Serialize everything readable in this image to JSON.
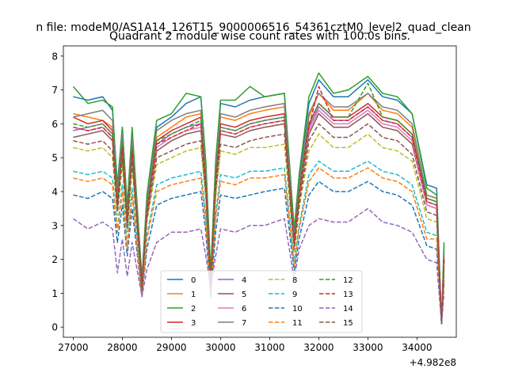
{
  "figure": {
    "suptitle": "n file: modeM0/AS1A14_126T15_9000006516_54361cztM0_level2_quad_clean",
    "offset_label": "+4.982e8"
  },
  "chart_data": {
    "type": "line",
    "title": "Quadrant 2 module wise count rates with 100.0s bins.",
    "xlabel": "",
    "ylabel": "",
    "xlim": [
      26800,
      34800
    ],
    "ylim": [
      -0.3,
      8.3
    ],
    "grid": false,
    "legend_position": "lower-center",
    "legend_columns": 4,
    "x_ticks": [
      27000,
      28000,
      29000,
      30000,
      31000,
      32000,
      33000,
      34000
    ],
    "x_tick_labels": [
      "27000",
      "28000",
      "29000",
      "30000",
      "31000",
      "32000",
      "33000",
      "34000"
    ],
    "y_ticks": [
      0,
      1,
      2,
      3,
      4,
      5,
      6,
      7,
      8
    ],
    "y_tick_labels": [
      "0",
      "1",
      "2",
      "3",
      "4",
      "5",
      "6",
      "7",
      "8"
    ],
    "x_offset": "+4.982e8",
    "x": [
      27000,
      27300,
      27600,
      27800,
      27900,
      28000,
      28100,
      28200,
      28400,
      28500,
      28700,
      29000,
      29300,
      29600,
      29700,
      29800,
      29900,
      30000,
      30300,
      30600,
      30900,
      31300,
      31500,
      31600,
      31800,
      32000,
      32300,
      32600,
      33000,
      33300,
      33600,
      33900,
      34200,
      34400,
      34500,
      34550
    ],
    "series": [
      {
        "name": "0",
        "color": "#1f77b4",
        "dash": "solid",
        "values": [
          6.8,
          6.7,
          6.8,
          6.4,
          4.2,
          5.9,
          3.5,
          5.8,
          1.4,
          3.8,
          5.9,
          6.2,
          6.6,
          6.8,
          4.8,
          1.5,
          4.8,
          6.6,
          6.5,
          6.7,
          6.8,
          6.9,
          2.8,
          4.4,
          6.6,
          7.3,
          6.8,
          6.8,
          7.3,
          6.8,
          6.7,
          6.3,
          4.2,
          4.1,
          0.1,
          2.3
        ]
      },
      {
        "name": "1",
        "color": "#ff7f0e",
        "dash": "solid",
        "values": [
          6.3,
          6.2,
          6.1,
          5.9,
          3.9,
          5.6,
          3.3,
          5.5,
          1.3,
          3.6,
          5.6,
          5.9,
          6.2,
          6.3,
          4.5,
          1.4,
          4.5,
          6.2,
          6.1,
          6.3,
          6.4,
          6.5,
          2.6,
          4.1,
          6.2,
          6.9,
          6.4,
          6.4,
          6.9,
          6.4,
          6.3,
          5.9,
          3.9,
          3.8,
          0.1,
          2.1
        ]
      },
      {
        "name": "2",
        "color": "#2ca02c",
        "dash": "solid",
        "values": [
          7.1,
          6.6,
          6.7,
          6.5,
          4.1,
          5.9,
          3.6,
          5.9,
          1.4,
          3.9,
          6.1,
          6.3,
          6.9,
          6.8,
          4.9,
          1.6,
          4.9,
          6.7,
          6.7,
          7.1,
          6.8,
          6.9,
          2.9,
          4.5,
          6.8,
          7.5,
          6.9,
          7.0,
          7.4,
          6.9,
          6.8,
          6.3,
          4.1,
          3.9,
          0.1,
          2.5
        ]
      },
      {
        "name": "3",
        "color": "#d62728",
        "dash": "solid",
        "values": [
          6.2,
          6.0,
          6.1,
          5.8,
          3.8,
          5.5,
          3.2,
          5.4,
          1.3,
          3.5,
          5.5,
          5.8,
          6.0,
          6.2,
          4.4,
          1.4,
          4.4,
          6.0,
          5.9,
          6.1,
          6.2,
          6.3,
          2.5,
          4.0,
          6.0,
          6.6,
          6.2,
          6.2,
          6.6,
          6.2,
          6.1,
          5.7,
          3.8,
          3.7,
          0.1,
          2.0
        ]
      },
      {
        "name": "4",
        "color": "#9467bd",
        "dash": "solid",
        "values": [
          5.8,
          5.9,
          6.0,
          5.7,
          3.6,
          5.4,
          3.1,
          5.3,
          1.2,
          3.4,
          5.4,
          5.7,
          5.9,
          6.0,
          4.3,
          1.3,
          4.3,
          5.9,
          5.8,
          6.0,
          6.1,
          6.2,
          2.5,
          3.9,
          5.9,
          6.5,
          6.1,
          6.1,
          6.5,
          6.1,
          6.0,
          5.6,
          3.7,
          3.6,
          0.1,
          2.0
        ]
      },
      {
        "name": "5",
        "color": "#8c564b",
        "dash": "solid",
        "values": [
          5.6,
          5.7,
          5.8,
          5.5,
          3.5,
          5.2,
          3.0,
          5.1,
          1.2,
          3.3,
          5.2,
          5.5,
          5.7,
          5.8,
          4.1,
          1.3,
          4.2,
          5.7,
          5.6,
          5.8,
          5.9,
          6.0,
          2.4,
          3.8,
          5.7,
          6.3,
          5.9,
          5.9,
          6.3,
          5.9,
          5.8,
          5.4,
          3.6,
          3.5,
          0.1,
          1.9
        ]
      },
      {
        "name": "6",
        "color": "#e377c2",
        "dash": "solid",
        "values": [
          5.9,
          5.8,
          5.9,
          5.6,
          3.7,
          5.3,
          3.1,
          5.2,
          1.2,
          3.4,
          5.3,
          5.6,
          5.8,
          5.9,
          4.2,
          1.3,
          4.3,
          5.8,
          5.7,
          5.9,
          6.0,
          6.1,
          2.4,
          3.9,
          5.8,
          6.4,
          6.0,
          6.0,
          6.4,
          6.0,
          5.9,
          5.5,
          3.6,
          3.5,
          0.1,
          1.9
        ]
      },
      {
        "name": "7",
        "color": "#7f7f7f",
        "dash": "solid",
        "values": [
          6.2,
          6.3,
          6.4,
          6.1,
          3.9,
          5.7,
          3.3,
          5.6,
          1.3,
          3.7,
          5.8,
          6.1,
          6.3,
          6.4,
          4.6,
          1.4,
          4.6,
          6.3,
          6.2,
          6.4,
          6.5,
          6.6,
          2.7,
          4.2,
          6.3,
          6.9,
          6.5,
          6.5,
          6.9,
          6.5,
          6.4,
          6.0,
          3.9,
          3.8,
          0.1,
          2.1
        ]
      },
      {
        "name": "8",
        "color": "#bcbd22",
        "dash": "dash",
        "values": [
          5.3,
          5.2,
          5.3,
          5.0,
          3.3,
          4.8,
          2.8,
          4.7,
          1.1,
          3.1,
          4.8,
          5.0,
          5.2,
          5.3,
          3.8,
          1.2,
          3.8,
          5.2,
          5.1,
          5.3,
          5.3,
          5.4,
          2.2,
          3.5,
          5.2,
          5.7,
          5.3,
          5.3,
          5.7,
          5.3,
          5.2,
          4.9,
          3.2,
          3.1,
          0.1,
          1.7
        ]
      },
      {
        "name": "9",
        "color": "#17becf",
        "dash": "dash",
        "values": [
          4.6,
          4.5,
          4.6,
          4.4,
          2.9,
          4.2,
          2.4,
          4.1,
          1.0,
          2.7,
          4.2,
          4.4,
          4.5,
          4.6,
          3.3,
          1.0,
          3.3,
          4.5,
          4.4,
          4.6,
          4.6,
          4.7,
          1.9,
          3.0,
          4.5,
          4.9,
          4.6,
          4.6,
          4.9,
          4.6,
          4.5,
          4.2,
          2.8,
          2.7,
          0.1,
          1.5
        ]
      },
      {
        "name": "10",
        "color": "#1f77b4",
        "dash": "dash",
        "values": [
          3.9,
          3.8,
          4.0,
          3.8,
          2.5,
          3.6,
          2.1,
          3.5,
          0.9,
          2.3,
          3.6,
          3.8,
          3.9,
          4.0,
          2.8,
          0.9,
          2.8,
          3.9,
          3.8,
          3.9,
          4.0,
          4.1,
          1.6,
          2.6,
          3.9,
          4.3,
          4.0,
          4.0,
          4.3,
          4.0,
          3.9,
          3.6,
          2.4,
          2.3,
          0.1,
          1.3
        ]
      },
      {
        "name": "11",
        "color": "#ff7f0e",
        "dash": "dash",
        "values": [
          4.4,
          4.3,
          4.4,
          4.2,
          2.8,
          4.0,
          2.3,
          3.9,
          0.9,
          2.6,
          4.0,
          4.2,
          4.3,
          4.4,
          3.1,
          1.0,
          3.2,
          4.3,
          4.2,
          4.4,
          4.4,
          4.5,
          1.8,
          2.9,
          4.3,
          4.7,
          4.4,
          4.4,
          4.7,
          4.4,
          4.3,
          4.0,
          2.6,
          2.6,
          0.1,
          1.4
        ]
      },
      {
        "name": "12",
        "color": "#2ca02c",
        "dash": "dash",
        "values": [
          6.0,
          5.9,
          6.0,
          5.7,
          3.7,
          5.4,
          3.2,
          5.3,
          1.2,
          3.5,
          5.5,
          5.7,
          5.9,
          6.1,
          4.3,
          1.3,
          4.4,
          5.9,
          5.8,
          6.0,
          6.1,
          6.2,
          2.5,
          4.0,
          6.0,
          6.6,
          6.2,
          6.2,
          7.2,
          6.2,
          6.1,
          5.7,
          3.8,
          3.7,
          0.1,
          2.0
        ]
      },
      {
        "name": "13",
        "color": "#d62728",
        "dash": "dash",
        "values": [
          5.9,
          5.8,
          5.9,
          5.6,
          3.6,
          5.3,
          3.1,
          5.2,
          1.2,
          3.4,
          5.4,
          5.6,
          5.8,
          6.0,
          4.2,
          1.3,
          4.3,
          5.8,
          5.7,
          5.9,
          6.0,
          6.1,
          2.5,
          3.9,
          5.9,
          7.1,
          6.1,
          6.1,
          6.5,
          6.1,
          6.0,
          5.6,
          3.7,
          3.6,
          0.1,
          2.0
        ]
      },
      {
        "name": "14",
        "color": "#9467bd",
        "dash": "dash",
        "values": [
          3.2,
          2.9,
          3.1,
          2.9,
          1.6,
          2.6,
          1.5,
          2.5,
          0.9,
          1.7,
          2.5,
          2.8,
          2.8,
          2.9,
          2.1,
          1.2,
          2.1,
          2.9,
          2.8,
          3.0,
          3.0,
          3.2,
          1.4,
          2.3,
          3.0,
          3.2,
          3.1,
          3.1,
          3.5,
          3.1,
          3.0,
          2.8,
          2.0,
          1.9,
          0.1,
          1.0
        ]
      },
      {
        "name": "15",
        "color": "#8c564b",
        "dash": "dash",
        "values": [
          5.5,
          5.4,
          5.5,
          5.2,
          3.4,
          5.0,
          2.9,
          4.9,
          1.1,
          3.2,
          5.0,
          5.2,
          5.4,
          5.5,
          3.9,
          1.2,
          4.0,
          5.4,
          5.3,
          5.5,
          5.6,
          5.7,
          2.3,
          3.6,
          5.5,
          6.0,
          5.6,
          5.6,
          6.0,
          5.6,
          5.5,
          5.1,
          3.4,
          3.3,
          0.1,
          1.8
        ]
      }
    ]
  }
}
